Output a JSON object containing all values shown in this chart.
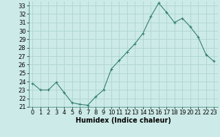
{
  "x": [
    0,
    1,
    2,
    3,
    4,
    5,
    6,
    7,
    8,
    9,
    10,
    11,
    12,
    13,
    14,
    15,
    16,
    17,
    18,
    19,
    20,
    21,
    22,
    23
  ],
  "y": [
    23.8,
    23.0,
    23.0,
    23.9,
    22.7,
    21.5,
    21.3,
    21.2,
    22.2,
    23.0,
    25.5,
    26.5,
    27.5,
    28.5,
    29.7,
    31.7,
    33.3,
    32.2,
    31.0,
    31.5,
    30.5,
    29.3,
    27.2,
    26.4
  ],
  "line_color": "#2e7d6e",
  "marker": "+",
  "marker_size": 3,
  "bg_color": "#cceae7",
  "grid_color": "#aed4d0",
  "xlabel": "Humidex (Indice chaleur)",
  "ylim": [
    21,
    33.5
  ],
  "yticks": [
    21,
    22,
    23,
    24,
    25,
    26,
    27,
    28,
    29,
    30,
    31,
    32,
    33
  ],
  "xticks": [
    0,
    1,
    2,
    3,
    4,
    5,
    6,
    7,
    8,
    9,
    10,
    11,
    12,
    13,
    14,
    15,
    16,
    17,
    18,
    19,
    20,
    21,
    22,
    23
  ],
  "tick_fontsize": 6,
  "xlabel_fontsize": 7
}
